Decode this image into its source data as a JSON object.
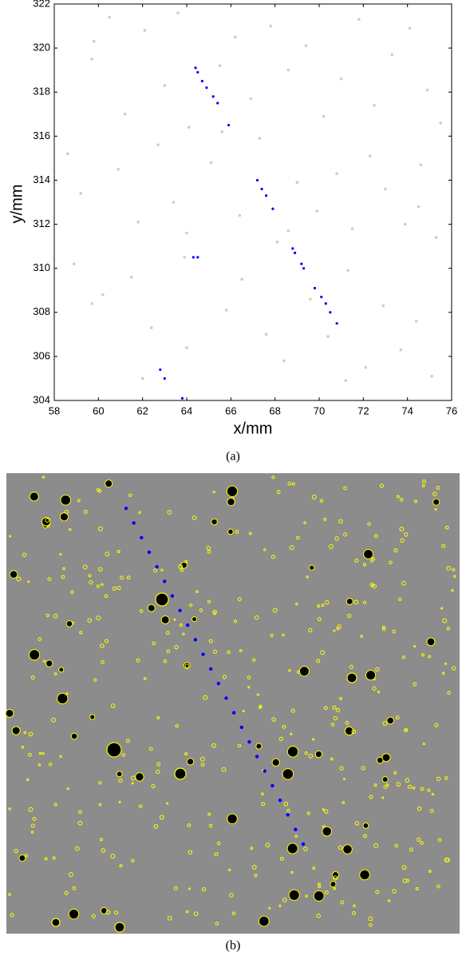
{
  "chart_data": {
    "type": "scatter",
    "xlabel": "x/mm",
    "ylabel": "y/mm",
    "xlim": [
      58,
      76
    ],
    "ylim": [
      304,
      322
    ],
    "xticks": [
      58,
      60,
      62,
      64,
      66,
      68,
      70,
      72,
      74,
      76
    ],
    "yticks": [
      304,
      306,
      308,
      310,
      312,
      314,
      316,
      318,
      320,
      322
    ],
    "series": [
      {
        "color": "#e8c6a6",
        "x": [
          59.8,
          59.7,
          60.5,
          61.2,
          62.1,
          63.0,
          63.6,
          64.1,
          65.5,
          66.2,
          66.9,
          67.8,
          68.6,
          69.4,
          70.2,
          71.0,
          71.8,
          72.5,
          73.3,
          74.1,
          74.9,
          75.5,
          58.6,
          59.2,
          60.9,
          61.8,
          62.7,
          63.4,
          64.0,
          65.1,
          66.4,
          67.3,
          68.1,
          69.0,
          69.9,
          70.8,
          71.5,
          72.3,
          73.0,
          73.9,
          74.6,
          75.3,
          58.9,
          60.2,
          61.5,
          62.4,
          63.9,
          64.0,
          65.8,
          66.5,
          67.6,
          68.4,
          69.6,
          70.4,
          71.3,
          72.1,
          72.9,
          73.7,
          74.4,
          75.1,
          59.7,
          62.0,
          65.6,
          68.6,
          71.2,
          74.5
        ],
        "y": [
          320.3,
          319.5,
          321.4,
          317.0,
          320.8,
          318.3,
          321.6,
          316.4,
          319.2,
          320.5,
          317.7,
          321.0,
          319.0,
          320.1,
          316.9,
          318.6,
          321.3,
          317.4,
          319.7,
          320.9,
          318.1,
          316.6,
          315.2,
          313.4,
          314.5,
          312.1,
          315.6,
          313.0,
          311.6,
          314.8,
          312.4,
          315.9,
          311.2,
          313.9,
          312.6,
          314.3,
          311.8,
          315.1,
          313.6,
          312.0,
          314.7,
          311.4,
          310.2,
          308.8,
          309.6,
          307.3,
          310.5,
          306.4,
          308.1,
          309.5,
          307.0,
          305.8,
          308.6,
          306.9,
          309.9,
          305.5,
          308.3,
          306.3,
          307.6,
          305.1,
          308.4,
          305.0,
          316.2,
          311.7,
          304.9,
          312.8
        ]
      },
      {
        "color": "#0000ff",
        "x": [
          64.4,
          64.5,
          64.7,
          64.9,
          65.2,
          65.4,
          65.9,
          67.2,
          67.4,
          67.6,
          67.9,
          68.8,
          68.9,
          69.2,
          69.3,
          69.8,
          70.1,
          70.3,
          70.5,
          70.8,
          62.8,
          63.0,
          63.8,
          64.3,
          64.5
        ],
        "y": [
          319.1,
          318.9,
          318.5,
          318.2,
          317.8,
          317.5,
          316.5,
          314.0,
          313.6,
          313.3,
          312.7,
          310.9,
          310.7,
          310.2,
          310.0,
          309.1,
          308.7,
          308.4,
          308.0,
          307.5,
          305.4,
          305.0,
          304.1,
          310.5,
          310.5
        ]
      }
    ]
  },
  "panel_labels": [
    "(a)",
    "(b)"
  ]
}
